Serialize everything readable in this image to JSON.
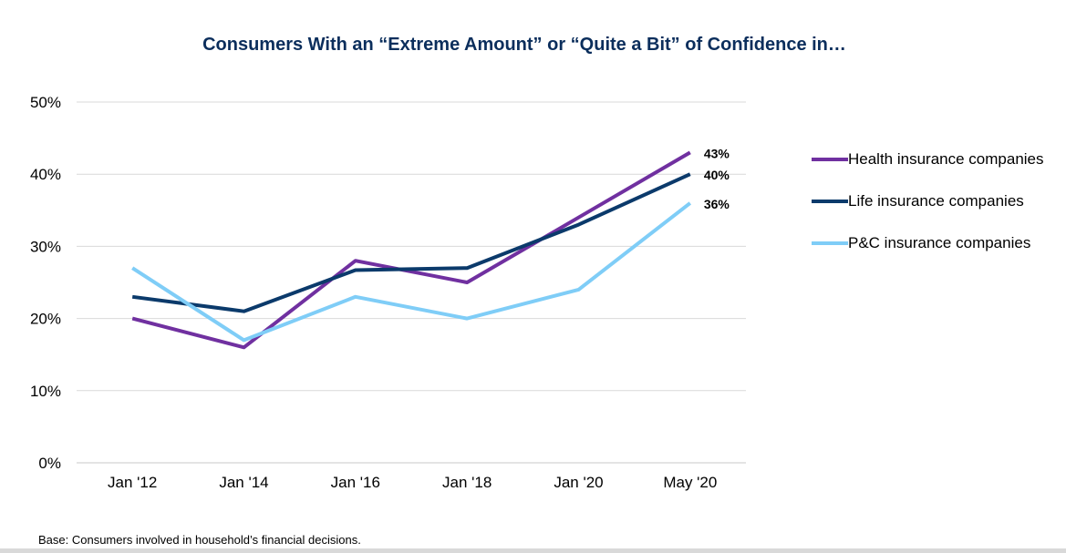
{
  "chart_data": {
    "type": "line",
    "title": "Consumers With an “Extreme Amount” or “Quite a Bit” of Confidence in…",
    "categories": [
      "Jan '12",
      "Jan '14",
      "Jan '16",
      "Jan '18",
      "Jan '20",
      "May '20"
    ],
    "y_ticks": [
      "0%",
      "10%",
      "20%",
      "30%",
      "40%",
      "50%"
    ],
    "ylim": [
      0,
      50
    ],
    "grid": true,
    "legend_position": "right",
    "series": [
      {
        "name": "Health insurance companies",
        "color": "#7030a0",
        "values": [
          20,
          16,
          28,
          25,
          34,
          43
        ],
        "end_label": "43%"
      },
      {
        "name": "Life insurance companies",
        "color": "#0b3a6b",
        "values": [
          23,
          21,
          26.7,
          27,
          33,
          40
        ],
        "end_label": "40%"
      },
      {
        "name": "P&C insurance companies",
        "color": "#7fcdf7",
        "values": [
          27,
          17,
          23,
          20,
          24,
          36
        ],
        "end_label": "36%"
      }
    ]
  },
  "footnote": "Base: Consumers involved in household’s financial decisions."
}
